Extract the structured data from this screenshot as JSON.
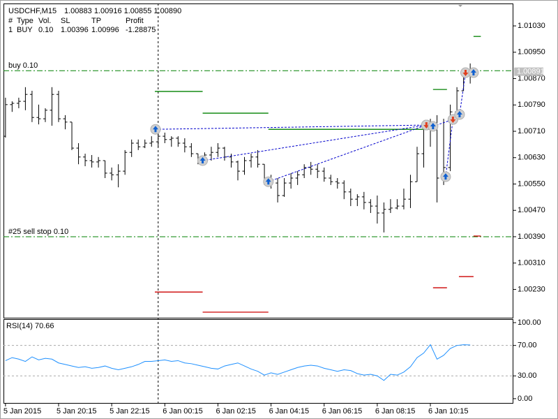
{
  "chart_data": [
    {
      "type": "ohlc",
      "title": "USDCHF,M15",
      "header_values": "1.00883 1.00916 1.00855 1.00890",
      "table": {
        "header": [
          "#",
          "Type",
          "Vol.",
          "SL",
          "TP",
          "Profit"
        ],
        "rows": [
          [
            "1",
            "BUY",
            "0.10",
            "1.00396",
            "1.00996",
            "-1.28875"
          ]
        ]
      },
      "color": "#000000",
      "open": [
        1.00695,
        1.00791,
        1.00795,
        1.00801,
        1.00822,
        1.00752,
        1.00748,
        1.00774,
        1.00822,
        1.00748,
        1.00738,
        1.00659,
        1.00632,
        1.00621,
        1.00617,
        1.00621,
        1.00583,
        1.00578,
        1.00589,
        1.00646,
        1.00674,
        1.00663,
        1.00674,
        1.00678,
        1.00695,
        1.00685,
        1.00689,
        1.00674,
        1.00663,
        1.00642,
        1.00617,
        1.00638,
        1.00646,
        1.00659,
        1.00632,
        1.00617,
        1.00589,
        1.00621,
        1.00632,
        1.0061,
        1.00561,
        1.00553,
        1.00515,
        1.00553,
        1.00568,
        1.00578,
        1.006,
        1.00595,
        1.00589,
        1.00568,
        1.00557,
        1.00553,
        1.00526,
        1.00504,
        1.00511,
        1.00494,
        1.00483,
        1.00462,
        1.00473,
        1.00477,
        1.00483,
        1.00504,
        1.00557,
        1.00642,
        1.00716,
        1.00727,
        1.00568,
        1.006,
        1.00769,
        1.00833,
        1.00883
      ],
      "high": [
        1.00812,
        1.00801,
        1.00812,
        1.00844,
        1.00833,
        1.00791,
        1.0078,
        1.00844,
        1.00833,
        1.00759,
        1.00738,
        1.00674,
        1.00642,
        1.00638,
        1.00632,
        1.00621,
        1.006,
        1.0061,
        1.00653,
        1.00685,
        1.00685,
        1.00685,
        1.00695,
        1.00716,
        1.00706,
        1.00695,
        1.00695,
        1.00689,
        1.00674,
        1.00642,
        1.00646,
        1.00663,
        1.00674,
        1.00663,
        1.00642,
        1.00621,
        1.00632,
        1.00642,
        1.00653,
        1.0061,
        1.00578,
        1.00568,
        1.00568,
        1.00583,
        1.00589,
        1.0061,
        1.00617,
        1.0061,
        1.006,
        1.00578,
        1.00568,
        1.00561,
        1.00536,
        1.00519,
        1.00526,
        1.00504,
        1.00515,
        1.00494,
        1.00504,
        1.00504,
        1.00536,
        1.00578,
        1.00663,
        1.00738,
        1.00748,
        1.00759,
        1.00748,
        1.00791,
        1.00844,
        1.00897,
        1.00916
      ],
      "low": [
        1.00691,
        1.00769,
        1.0078,
        1.00774,
        1.00738,
        1.00731,
        1.00738,
        1.00727,
        1.00738,
        1.00716,
        1.00653,
        1.0061,
        1.00604,
        1.006,
        1.006,
        1.00568,
        1.00561,
        1.0054,
        1.00578,
        1.00632,
        1.00653,
        1.00659,
        1.00663,
        1.00663,
        1.00674,
        1.00663,
        1.00663,
        1.00646,
        1.00632,
        1.0061,
        1.00617,
        1.00621,
        1.00632,
        1.00621,
        1.006,
        1.00561,
        1.00578,
        1.006,
        1.006,
        1.00547,
        1.00536,
        1.00494,
        1.00511,
        1.00536,
        1.00547,
        1.00568,
        1.00578,
        1.00568,
        1.00557,
        1.00547,
        1.00536,
        1.00504,
        1.00483,
        1.00483,
        1.00473,
        1.00462,
        1.0043,
        1.00403,
        1.00462,
        1.00473,
        1.00473,
        1.00477,
        1.00557,
        1.006,
        1.00663,
        1.00494,
        1.00547,
        1.00589,
        1.00738,
        1.00833,
        1.00855
      ],
      "close": [
        1.00791,
        1.00795,
        1.00801,
        1.00822,
        1.00752,
        1.00748,
        1.00774,
        1.00822,
        1.00748,
        1.00738,
        1.00659,
        1.00632,
        1.00621,
        1.00617,
        1.00621,
        1.00583,
        1.00578,
        1.00589,
        1.00646,
        1.00674,
        1.00663,
        1.00674,
        1.00678,
        1.00695,
        1.00685,
        1.00689,
        1.00674,
        1.00663,
        1.00642,
        1.00617,
        1.00638,
        1.00646,
        1.00659,
        1.00632,
        1.00617,
        1.00589,
        1.00621,
        1.00632,
        1.0061,
        1.00561,
        1.00553,
        1.00515,
        1.00553,
        1.00568,
        1.00578,
        1.006,
        1.00595,
        1.00589,
        1.00568,
        1.00557,
        1.00553,
        1.00526,
        1.00504,
        1.00511,
        1.00494,
        1.00483,
        1.00462,
        1.00473,
        1.00477,
        1.00483,
        1.00504,
        1.00557,
        1.00642,
        1.00716,
        1.00727,
        1.00568,
        1.006,
        1.00769,
        1.00833,
        1.00886,
        1.0089
      ],
      "xlim": [
        -0.3,
        76.5
      ],
      "xticks": [
        {
          "value": 0,
          "label": "5 Jan 2015"
        },
        {
          "value": 8,
          "label": "5 Jan 20:15"
        },
        {
          "value": 16,
          "label": "5 Jan 22:15"
        },
        {
          "value": 24,
          "label": "6 Jan 00:15"
        },
        {
          "value": 32,
          "label": "6 Jan 02:15"
        },
        {
          "value": 40,
          "label": "6 Jan 04:15"
        },
        {
          "value": 48,
          "label": "6 Jan 06:15"
        },
        {
          "value": 56,
          "label": "6 Jan 08:15"
        },
        {
          "value": 64,
          "label": "6 Jan 10:15"
        }
      ],
      "ylim": [
        1.00144,
        1.01098
      ],
      "yticks": [
        {
          "value": 1.0103,
          "label": "1.01030"
        },
        {
          "value": 1.0095,
          "label": "1.00950"
        },
        {
          "value": 1.0087,
          "label": "1.00870"
        },
        {
          "value": 1.0079,
          "label": "1.00790"
        },
        {
          "value": 1.0071,
          "label": "1.00710"
        },
        {
          "value": 1.0063,
          "label": "1.00630"
        },
        {
          "value": 1.0055,
          "label": "1.00550"
        },
        {
          "value": 1.0047,
          "label": "1.00470"
        },
        {
          "value": 1.0039,
          "label": "1.00390"
        },
        {
          "value": 1.0031,
          "label": "1.00310"
        },
        {
          "value": 1.0023,
          "label": "1.00230"
        }
      ],
      "day_separator": 23,
      "order_lines": [
        {
          "label": "buy 0.10",
          "price": 1.00894,
          "color": "#008000"
        },
        {
          "label": "#25 sell stop 0.10",
          "price": 1.0039,
          "color": "#008000"
        }
      ],
      "bid": {
        "value": 1.00891,
        "label": "1.00891"
      },
      "levels": [
        {
          "from": 22.5,
          "to": 29.7,
          "price": 1.00831,
          "color": "#008000"
        },
        {
          "from": 29.7,
          "to": 39.6,
          "price": 1.00765,
          "color": "#008000"
        },
        {
          "from": 39.6,
          "to": 63.9,
          "price": 1.00716,
          "color": "#008000"
        },
        {
          "from": 64.4,
          "to": 66.5,
          "price": 1.00837,
          "color": "#008000"
        },
        {
          "from": 70.5,
          "to": 71.6,
          "price": 1.00998,
          "color": "#008000"
        },
        {
          "from": 22.5,
          "to": 29.7,
          "price": 1.00222,
          "color": "#cc0000"
        },
        {
          "from": 29.7,
          "to": 39.6,
          "price": 1.00161,
          "color": "#cc0000"
        },
        {
          "from": 64.4,
          "to": 66.5,
          "price": 1.00235,
          "color": "#cc0000"
        },
        {
          "from": 68.3,
          "to": 70.5,
          "price": 1.00269,
          "color": "#cc0000"
        },
        {
          "from": 70.5,
          "to": 71.6,
          "price": 1.00392,
          "color": "#cc0000"
        }
      ],
      "trade_color": "#0000cc",
      "trades": [
        {
          "entry": {
            "x": 22.6,
            "price": 1.00716
          },
          "exit": {
            "x": 63.4,
            "price": 1.00729
          }
        },
        {
          "entry": {
            "x": 29.7,
            "price": 1.00621
          },
          "exit": {
            "x": 63.4,
            "price": 1.00729
          }
        },
        {
          "entry": {
            "x": 39.6,
            "price": 1.00557
          },
          "exit": {
            "x": 63.4,
            "price": 1.00729
          }
        },
        {
          "entry": {
            "x": 64.4,
            "price": 1.00725
          },
          "exit": {
            "x": 67.4,
            "price": 1.00746
          }
        },
        {
          "entry": {
            "x": 66.3,
            "price": 1.00572
          },
          "exit": {
            "x": 67.4,
            "price": 1.00746
          }
        },
        {
          "entry": {
            "x": 68.4,
            "price": 1.00761
          },
          "exit": {
            "x": 69.3,
            "price": 1.00888
          }
        },
        {
          "entry": {
            "x": 70.5,
            "price": 1.00888
          },
          "exit": null
        }
      ]
    },
    {
      "type": "line",
      "title": "RSI(14) 70.66",
      "color": "#1e90ff",
      "values": [
        50,
        54,
        52,
        49,
        55,
        51,
        53,
        52,
        47,
        45,
        43,
        41,
        42,
        40,
        41,
        43,
        40,
        38,
        40,
        42,
        45,
        49,
        49,
        50,
        51,
        49,
        50,
        47,
        46,
        44,
        42,
        40,
        39,
        43,
        45,
        47,
        43,
        39,
        36,
        31,
        34,
        32,
        35,
        38,
        41,
        43,
        44,
        43,
        40,
        38,
        36,
        38,
        37,
        33,
        31,
        32,
        30,
        24,
        32,
        31,
        35,
        42,
        54,
        60,
        71,
        52,
        57,
        66,
        70,
        71,
        70.66
      ],
      "ylim": [
        -5.6,
        104.6
      ],
      "yticks": [
        {
          "value": 100,
          "label": "100.00"
        },
        {
          "value": 70,
          "label": "70.00"
        },
        {
          "value": 30,
          "label": "30.00"
        },
        {
          "value": 0,
          "label": "0.00"
        }
      ],
      "levels": [
        70,
        30
      ],
      "level_color": "#aaaaaa"
    }
  ]
}
